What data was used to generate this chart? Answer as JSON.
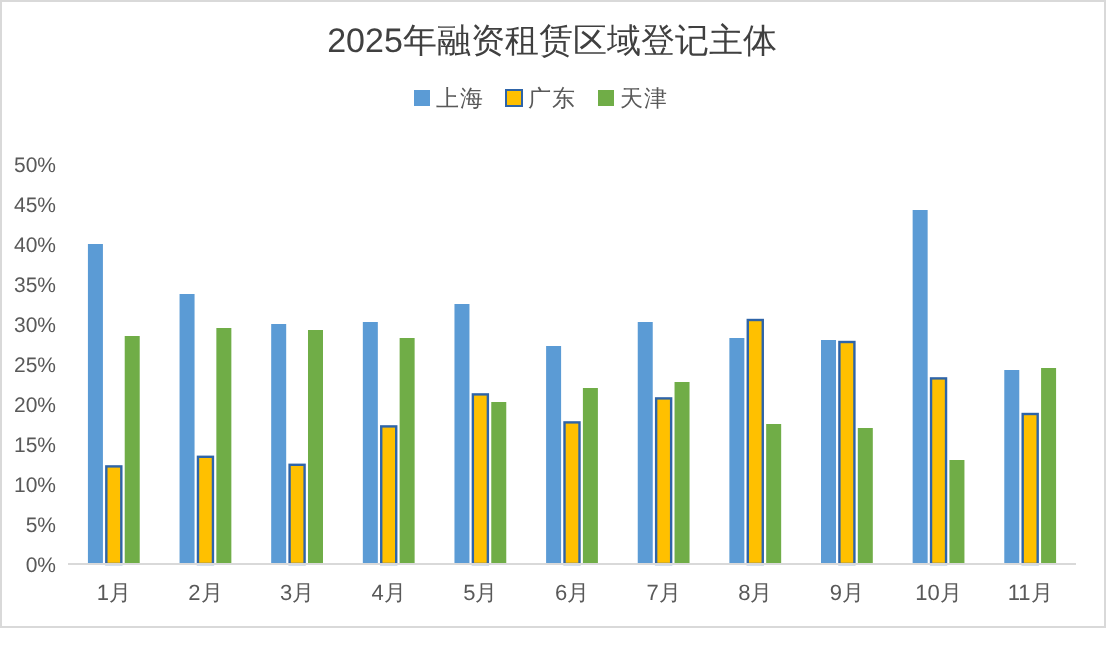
{
  "chart_data": {
    "type": "bar",
    "title": "2025年融资租赁区域登记主体",
    "categories": [
      "1月",
      "2月",
      "3月",
      "4月",
      "5月",
      "6月",
      "7月",
      "8月",
      "9月",
      "10月",
      "11月"
    ],
    "series": [
      {
        "name": "上海",
        "color": "#5b9bd5",
        "values": [
          40,
          33.75,
          30,
          30.25,
          32.5,
          27.25,
          30.25,
          28.25,
          28,
          44.25,
          24.25
        ]
      },
      {
        "name": "广东",
        "color": "#ffc000",
        "values": [
          12.2,
          13.4,
          12.4,
          17.2,
          21.2,
          17.7,
          20.7,
          30.5,
          27.75,
          23.2,
          18.75
        ]
      },
      {
        "name": "天津",
        "color": "#70ad47",
        "values": [
          28.5,
          29.5,
          29.25,
          28.25,
          20.25,
          22,
          22.75,
          17.5,
          17,
          13,
          24.5
        ]
      }
    ],
    "ylim": [
      0,
      50
    ],
    "yticks": [
      {
        "value": 0,
        "label": "0%"
      },
      {
        "value": 5,
        "label": "5%"
      },
      {
        "value": 10,
        "label": "10%"
      },
      {
        "value": 15,
        "label": "15%"
      },
      {
        "value": 20,
        "label": "20%"
      },
      {
        "value": 25,
        "label": "25%"
      },
      {
        "value": 30,
        "label": "30%"
      },
      {
        "value": 35,
        "label": "35%"
      },
      {
        "value": 40,
        "label": "40%"
      },
      {
        "value": 45,
        "label": "45%"
      },
      {
        "value": 50,
        "label": "50%"
      }
    ],
    "legend": "top",
    "grid": false
  }
}
